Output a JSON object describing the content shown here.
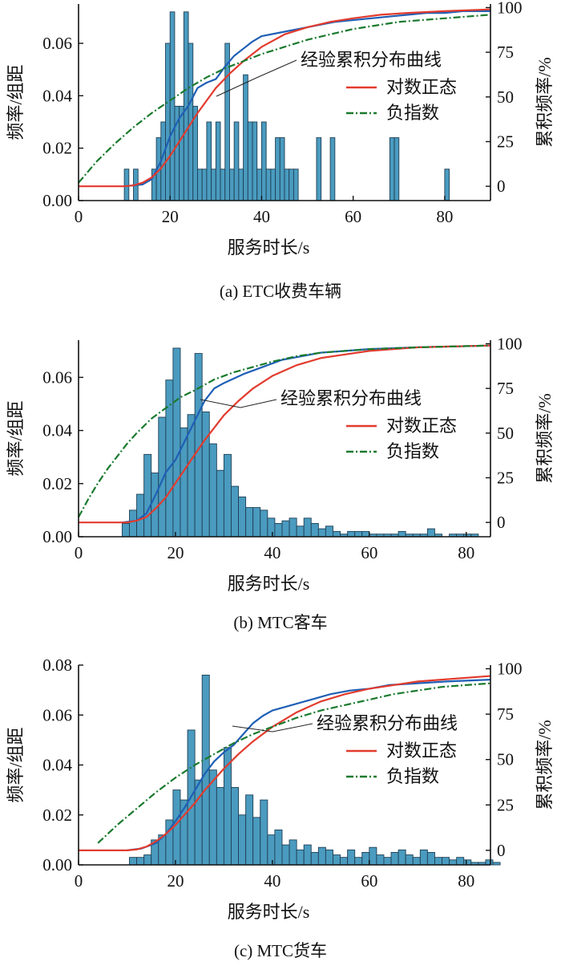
{
  "figure": {
    "colors": {
      "bar_fill": "#4a9bbf",
      "bar_stroke": "#1f3f55",
      "empirical": "#1f5fb5",
      "lognormal": "#e23b2e",
      "exponential": "#1a7a2e",
      "axis": "#111111"
    }
  },
  "chart_data": [
    {
      "type": "bar",
      "id": "a",
      "caption": "(a) ETC收费车辆",
      "xlabel": "服务时长/s",
      "ylabel_left": "频率/组距",
      "ylabel_right": "累积频率/%",
      "xlim": [
        0,
        90
      ],
      "ylim_left": [
        0,
        0.075
      ],
      "ylim_right": [
        -8,
        102
      ],
      "x_ticks": [
        0,
        20,
        40,
        60,
        80
      ],
      "y_left_ticks": [
        "0.00",
        "0.02",
        "0.04",
        "0.06"
      ],
      "y_right_ticks": [
        "0",
        "25",
        "50",
        "75",
        "100"
      ],
      "bins": {
        "start": 10,
        "width": 1,
        "values": [
          0.012,
          0,
          0.012,
          0,
          0,
          0,
          0.012,
          0.024,
          0.03,
          0.06,
          0.072,
          0.036,
          0.036,
          0.072,
          0.06,
          0.036,
          0.012,
          0.012,
          0.03,
          0.012,
          0.03,
          0.012,
          0.06,
          0.012,
          0.03,
          0.012,
          0.048,
          0.03,
          0.03,
          0.012,
          0.03,
          0.012,
          0.012,
          0.024,
          0.024,
          0.012,
          0.012,
          0.012,
          0,
          0,
          0,
          0,
          0.024,
          0,
          0,
          0.024,
          0,
          0,
          0,
          0,
          0,
          0,
          0,
          0,
          0,
          0,
          0,
          0,
          0.024,
          0.024,
          0,
          0,
          0,
          0,
          0,
          0,
          0,
          0,
          0,
          0,
          0.012
        ]
      },
      "series": [
        {
          "name": "经验累积分布曲线",
          "x": [
            10,
            14,
            16,
            18,
            20,
            22,
            24,
            26,
            28,
            30,
            32,
            34,
            36,
            38,
            40,
            44,
            48,
            52,
            56,
            60,
            64,
            68,
            72,
            76,
            80,
            84,
            90
          ],
          "y": [
            0,
            1,
            4,
            14,
            28,
            38,
            45,
            55,
            58,
            60,
            67,
            73,
            77,
            81,
            84,
            86,
            88,
            90,
            92,
            93,
            94,
            95,
            96,
            97,
            97,
            98,
            98
          ]
        },
        {
          "name": "对数正态",
          "x": [
            0,
            10,
            12,
            14,
            16,
            18,
            20,
            22,
            24,
            26,
            28,
            30,
            33,
            36,
            40,
            45,
            50,
            55,
            60,
            66,
            72,
            80,
            90
          ],
          "y": [
            0,
            0,
            0.5,
            2,
            5,
            10,
            17,
            25,
            33,
            41,
            48,
            55,
            63,
            70,
            78,
            85,
            89,
            92,
            94,
            96,
            97,
            98,
            99
          ]
        },
        {
          "name": "负指数",
          "x": [
            0,
            4,
            8,
            12,
            16,
            20,
            24,
            28,
            32,
            36,
            40,
            45,
            50,
            55,
            60,
            65,
            70,
            75,
            80,
            85,
            90
          ],
          "y": [
            2,
            14,
            24,
            33,
            41,
            48,
            55,
            61,
            66,
            70,
            74,
            78,
            82,
            85,
            88,
            90,
            92,
            93,
            94,
            95,
            96
          ]
        }
      ]
    },
    {
      "type": "bar",
      "id": "b",
      "caption": "(b) MTC客车",
      "xlabel": "服务时长/s",
      "ylabel_left": "频率/组距",
      "ylabel_right": "累积频率/%",
      "xlim": [
        0,
        85
      ],
      "ylim_left": [
        0,
        0.074
      ],
      "ylim_right": [
        -8,
        102
      ],
      "x_ticks": [
        0,
        20,
        40,
        60,
        80
      ],
      "y_left_ticks": [
        "0.00",
        "0.02",
        "0.04",
        "0.06"
      ],
      "y_right_ticks": [
        "0",
        "25",
        "50",
        "75",
        "100"
      ],
      "bins": {
        "start": 9,
        "width": 1.5,
        "values": [
          0.005,
          0.01,
          0.016,
          0.031,
          0.024,
          0.045,
          0.059,
          0.071,
          0.041,
          0.046,
          0.069,
          0.047,
          0.035,
          0.025,
          0.031,
          0.019,
          0.015,
          0.011,
          0.011,
          0.01,
          0.007,
          0.005,
          0.006,
          0.007,
          0.004,
          0.007,
          0.005,
          0.003,
          0.004,
          0.002,
          0.001,
          0.002,
          0.002,
          0.002,
          0.001,
          0.001,
          0.001,
          0.001,
          0.002,
          0.001,
          0.001,
          0.001,
          0.003,
          0.001,
          0,
          0.001,
          0.001,
          0.001,
          0.001
        ]
      },
      "series": [
        {
          "name": "经验累积分布曲线",
          "x": [
            9,
            12,
            14,
            16,
            18,
            20,
            22,
            24,
            26,
            28,
            30,
            34,
            38,
            42,
            46,
            50,
            55,
            60,
            70,
            85
          ],
          "y": [
            0,
            1,
            5,
            16,
            28,
            35,
            46,
            57,
            68,
            75,
            78,
            83,
            87,
            91,
            93,
            95,
            96,
            97,
            98,
            99
          ]
        },
        {
          "name": "对数正态",
          "x": [
            0,
            10,
            12,
            14,
            16,
            18,
            20,
            22,
            24,
            26,
            28,
            30,
            33,
            36,
            40,
            45,
            50,
            55,
            60,
            70,
            85
          ],
          "y": [
            0,
            0,
            1,
            3,
            8,
            14,
            22,
            30,
            38,
            46,
            53,
            60,
            68,
            75,
            82,
            88,
            92,
            94,
            96,
            98,
            99
          ]
        },
        {
          "name": "负指数",
          "x": [
            0,
            2,
            4,
            6,
            8,
            10,
            12,
            15,
            18,
            21,
            24,
            28,
            32,
            36,
            40,
            45,
            50,
            55,
            60,
            70,
            85
          ],
          "y": [
            3,
            13,
            22,
            30,
            37,
            44,
            50,
            58,
            64,
            70,
            74,
            80,
            84,
            87,
            90,
            93,
            95,
            96,
            97,
            98,
            99
          ]
        }
      ]
    },
    {
      "type": "bar",
      "id": "c",
      "caption": "(c) MTC货车",
      "xlabel": "服务时长/s",
      "ylabel_left": "频率/组距",
      "ylabel_right": "累积频率/%",
      "xlim": [
        0,
        85
      ],
      "ylim_left": [
        0,
        0.08
      ],
      "ylim_right": [
        -8,
        102
      ],
      "x_ticks": [
        0,
        20,
        40,
        60,
        80
      ],
      "y_left_ticks": [
        "0.00",
        "0.02",
        "0.04",
        "0.06",
        "0.08"
      ],
      "y_right_ticks": [
        "0",
        "25",
        "50",
        "75",
        "100"
      ],
      "bins": {
        "start": 10.5,
        "width": 1.5,
        "values": [
          0.003,
          0.003,
          0.004,
          0.01,
          0.012,
          0.018,
          0.03,
          0.026,
          0.054,
          0.034,
          0.076,
          0.038,
          0.031,
          0.047,
          0.031,
          0.02,
          0.028,
          0.019,
          0.026,
          0.012,
          0.014,
          0.008,
          0.01,
          0.006,
          0.008,
          0.005,
          0.007,
          0.006,
          0.004,
          0.003,
          0.006,
          0.003,
          0.005,
          0.007,
          0.004,
          0.003,
          0.005,
          0.006,
          0.004,
          0.003,
          0.006,
          0.005,
          0.003,
          0.003,
          0.002,
          0.003,
          0.002,
          0.001,
          0.001,
          0.002,
          0.001
        ]
      },
      "series": [
        {
          "name": "经验累积分布曲线",
          "x": [
            10,
            13,
            16,
            18,
            20,
            22,
            24,
            26,
            28,
            30,
            32,
            34,
            36,
            38,
            40,
            44,
            48,
            52,
            56,
            60,
            64,
            70,
            76,
            85
          ],
          "y": [
            0,
            1,
            4,
            9,
            16,
            24,
            33,
            42,
            49,
            54,
            58,
            64,
            70,
            74,
            77,
            80,
            83,
            86,
            88,
            89,
            91,
            92,
            93,
            94
          ]
        },
        {
          "name": "对数正态",
          "x": [
            0,
            10,
            12,
            14,
            16,
            18,
            20,
            22,
            24,
            26,
            28,
            30,
            33,
            36,
            40,
            45,
            50,
            55,
            60,
            70,
            85
          ],
          "y": [
            0,
            0,
            0.5,
            2,
            5,
            9,
            14,
            20,
            26,
            33,
            39,
            45,
            53,
            60,
            68,
            76,
            82,
            86,
            89,
            93,
            96
          ]
        },
        {
          "name": "负指数",
          "x": [
            4,
            8,
            12,
            16,
            20,
            24,
            28,
            32,
            36,
            40,
            45,
            50,
            55,
            60,
            65,
            70,
            75,
            80,
            85
          ],
          "y": [
            4,
            14,
            23,
            32,
            40,
            47,
            53,
            59,
            64,
            68,
            73,
            77,
            80,
            83,
            86,
            88,
            90,
            91,
            92
          ]
        }
      ]
    }
  ]
}
